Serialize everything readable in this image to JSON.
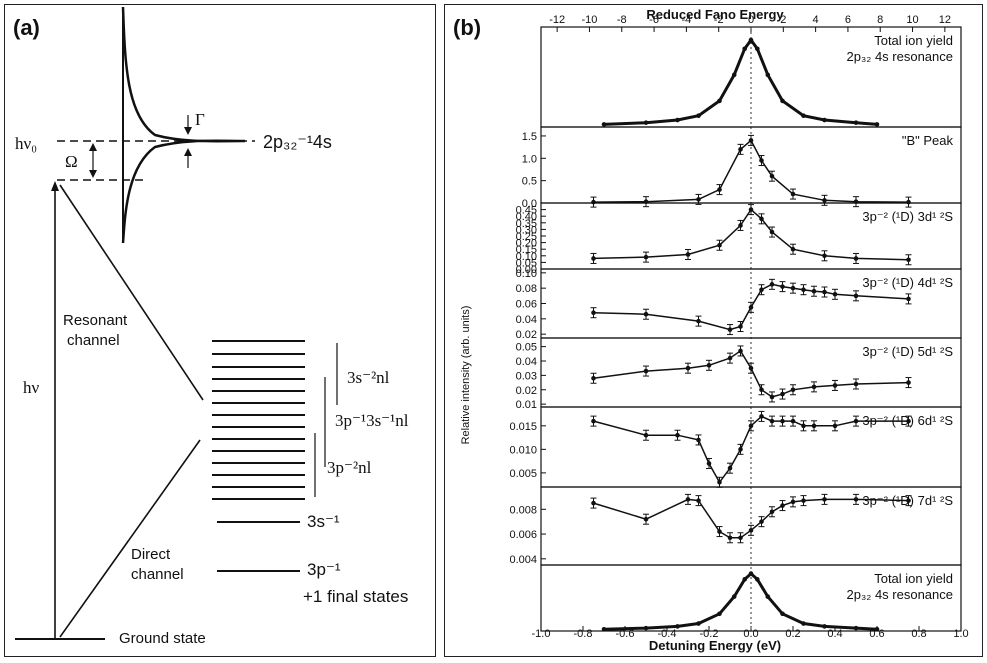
{
  "panel_a": {
    "label": "(a)",
    "resonance_label": "2p₃₂⁻¹4s",
    "gamma": "Γ",
    "omega": "Ω",
    "hv0": "hν₀",
    "hv": "hν",
    "resonant_channel": [
      "Resonant",
      "channel"
    ],
    "direct_channel": [
      "Direct",
      "channel"
    ],
    "ground_state": "Ground state",
    "level_labels": [
      "3s⁻²nl",
      "3p⁻¹3s⁻¹nl",
      "3p⁻²nl",
      "3s⁻¹",
      "3p⁻¹",
      "+1 final states"
    ]
  },
  "panel_b": {
    "label": "(b)",
    "top_axis_title": "Reduced Fano Energy",
    "top_ticks": [
      "-12",
      "-10",
      "-8",
      "-6",
      "-4",
      "-2",
      "0",
      "2",
      "4",
      "6",
      "8",
      "10",
      "12"
    ],
    "bottom_ticks": [
      "-1.0",
      "-0.8",
      "-0.6",
      "-0.4",
      "-0.2",
      "0.0",
      "0.2",
      "0.4",
      "0.6",
      "0.8",
      "1.0"
    ],
    "xlabel": "Detuning Energy (eV)",
    "ylabel": "Relative intensity (arb. units)"
  },
  "chart_data": [
    {
      "type": "scatter",
      "title": "Total ion yield 2p₃₂ 4s resonance",
      "xlabel": "Detuning Energy (eV)",
      "xlim": [
        -1.0,
        1.0
      ],
      "x_secondary": {
        "label": "Reduced Fano Energy",
        "ticks": [
          -12,
          -10,
          -8,
          -6,
          -4,
          -2,
          0,
          2,
          4,
          6,
          8,
          10,
          12
        ]
      },
      "series": [
        {
          "points": [
            [
              -0.7,
              0.03
            ],
            [
              -0.5,
              0.05
            ],
            [
              -0.35,
              0.08
            ],
            [
              -0.25,
              0.13
            ],
            [
              -0.15,
              0.3
            ],
            [
              -0.08,
              0.6
            ],
            [
              -0.03,
              0.9
            ],
            [
              0.0,
              1.0
            ],
            [
              0.03,
              0.9
            ],
            [
              0.08,
              0.6
            ],
            [
              0.15,
              0.3
            ],
            [
              0.25,
              0.13
            ],
            [
              0.35,
              0.08
            ],
            [
              0.5,
              0.05
            ],
            [
              0.6,
              0.03
            ]
          ]
        }
      ]
    },
    {
      "type": "scatter",
      "title": "\"B\" Peak",
      "yticks": [
        "0.0",
        "0.5",
        "1.0",
        "1.5"
      ],
      "ylim": [
        0,
        1.7
      ],
      "series": [
        {
          "points": [
            [
              -0.75,
              0.02
            ],
            [
              -0.5,
              0.03
            ],
            [
              -0.25,
              0.08
            ],
            [
              -0.15,
              0.3
            ],
            [
              -0.05,
              1.2
            ],
            [
              0.0,
              1.4
            ],
            [
              0.05,
              0.95
            ],
            [
              0.1,
              0.6
            ],
            [
              0.2,
              0.2
            ],
            [
              0.35,
              0.06
            ],
            [
              0.5,
              0.03
            ],
            [
              0.75,
              0.02
            ]
          ]
        }
      ]
    },
    {
      "type": "scatter",
      "title": "3p⁻² (¹D) 3d¹ ²S",
      "yticks": [
        "0.00",
        "0.05",
        "0.10",
        "0.15",
        "0.20",
        "0.25",
        "0.30",
        "0.35",
        "0.40",
        "0.45"
      ],
      "ylim": [
        0,
        0.5
      ],
      "series": [
        {
          "points": [
            [
              -0.75,
              0.08
            ],
            [
              -0.5,
              0.09
            ],
            [
              -0.3,
              0.11
            ],
            [
              -0.15,
              0.18
            ],
            [
              -0.05,
              0.33
            ],
            [
              0.0,
              0.45
            ],
            [
              0.05,
              0.38
            ],
            [
              0.1,
              0.28
            ],
            [
              0.2,
              0.15
            ],
            [
              0.35,
              0.1
            ],
            [
              0.5,
              0.08
            ],
            [
              0.75,
              0.07
            ]
          ]
        }
      ]
    },
    {
      "type": "scatter",
      "title": "3p⁻² (¹D) 4d¹ ²S",
      "yticks": [
        "0.02",
        "0.04",
        "0.06",
        "0.08",
        "0.10"
      ],
      "ylim": [
        0.015,
        0.105
      ],
      "series": [
        {
          "points": [
            [
              -0.75,
              0.048
            ],
            [
              -0.5,
              0.046
            ],
            [
              -0.25,
              0.037
            ],
            [
              -0.1,
              0.026
            ],
            [
              -0.05,
              0.03
            ],
            [
              0.0,
              0.055
            ],
            [
              0.05,
              0.078
            ],
            [
              0.1,
              0.085
            ],
            [
              0.15,
              0.082
            ],
            [
              0.2,
              0.08
            ],
            [
              0.25,
              0.078
            ],
            [
              0.3,
              0.076
            ],
            [
              0.35,
              0.075
            ],
            [
              0.4,
              0.072
            ],
            [
              0.5,
              0.07
            ],
            [
              0.75,
              0.066
            ]
          ]
        }
      ]
    },
    {
      "type": "scatter",
      "title": "3p⁻² (¹D) 5d¹ ²S",
      "yticks": [
        "0.01",
        "0.02",
        "0.03",
        "0.04",
        "0.05"
      ],
      "ylim": [
        0.008,
        0.056
      ],
      "series": [
        {
          "points": [
            [
              -0.75,
              0.028
            ],
            [
              -0.5,
              0.033
            ],
            [
              -0.3,
              0.035
            ],
            [
              -0.2,
              0.037
            ],
            [
              -0.1,
              0.042
            ],
            [
              -0.05,
              0.047
            ],
            [
              0.0,
              0.035
            ],
            [
              0.05,
              0.02
            ],
            [
              0.1,
              0.015
            ],
            [
              0.15,
              0.017
            ],
            [
              0.2,
              0.02
            ],
            [
              0.3,
              0.022
            ],
            [
              0.4,
              0.023
            ],
            [
              0.5,
              0.024
            ],
            [
              0.75,
              0.025
            ]
          ]
        }
      ]
    },
    {
      "type": "scatter",
      "title": "3p⁻² (¹D) 6d¹ ²S",
      "yticks": [
        "0.005",
        "0.010",
        "0.015"
      ],
      "ylim": [
        0.002,
        0.019
      ],
      "series": [
        {
          "points": [
            [
              -0.75,
              0.016
            ],
            [
              -0.5,
              0.013
            ],
            [
              -0.35,
              0.013
            ],
            [
              -0.25,
              0.012
            ],
            [
              -0.2,
              0.007
            ],
            [
              -0.15,
              0.003
            ],
            [
              -0.1,
              0.006
            ],
            [
              -0.05,
              0.01
            ],
            [
              0.0,
              0.015
            ],
            [
              0.05,
              0.017
            ],
            [
              0.1,
              0.016
            ],
            [
              0.15,
              0.016
            ],
            [
              0.2,
              0.016
            ],
            [
              0.25,
              0.015
            ],
            [
              0.3,
              0.015
            ],
            [
              0.4,
              0.015
            ],
            [
              0.5,
              0.016
            ],
            [
              0.75,
              0.016
            ]
          ]
        }
      ]
    },
    {
      "type": "scatter",
      "title": "3p⁻² (¹D) 7d¹ ²S",
      "yticks": [
        "0.004",
        "0.006",
        "0.008"
      ],
      "ylim": [
        0.0035,
        0.0098
      ],
      "series": [
        {
          "points": [
            [
              -0.75,
              0.0085
            ],
            [
              -0.5,
              0.0072
            ],
            [
              -0.3,
              0.0088
            ],
            [
              -0.25,
              0.0087
            ],
            [
              -0.15,
              0.0062
            ],
            [
              -0.1,
              0.0057
            ],
            [
              -0.05,
              0.0057
            ],
            [
              0.0,
              0.0063
            ],
            [
              0.05,
              0.007
            ],
            [
              0.1,
              0.0078
            ],
            [
              0.15,
              0.0083
            ],
            [
              0.2,
              0.0086
            ],
            [
              0.25,
              0.0087
            ],
            [
              0.35,
              0.0088
            ],
            [
              0.5,
              0.0088
            ],
            [
              0.75,
              0.0087
            ]
          ]
        }
      ]
    },
    {
      "type": "scatter",
      "title": "Total ion yield 2p₃₂ 4s resonance",
      "series": [
        {
          "points": [
            [
              -0.7,
              0.03
            ],
            [
              -0.5,
              0.05
            ],
            [
              -0.35,
              0.08
            ],
            [
              -0.25,
              0.13
            ],
            [
              -0.15,
              0.3
            ],
            [
              -0.08,
              0.6
            ],
            [
              -0.03,
              0.9
            ],
            [
              0.0,
              1.0
            ],
            [
              0.03,
              0.9
            ],
            [
              0.08,
              0.6
            ],
            [
              0.15,
              0.3
            ],
            [
              0.25,
              0.13
            ],
            [
              0.35,
              0.08
            ],
            [
              0.5,
              0.05
            ],
            [
              0.6,
              0.03
            ]
          ]
        }
      ]
    }
  ]
}
